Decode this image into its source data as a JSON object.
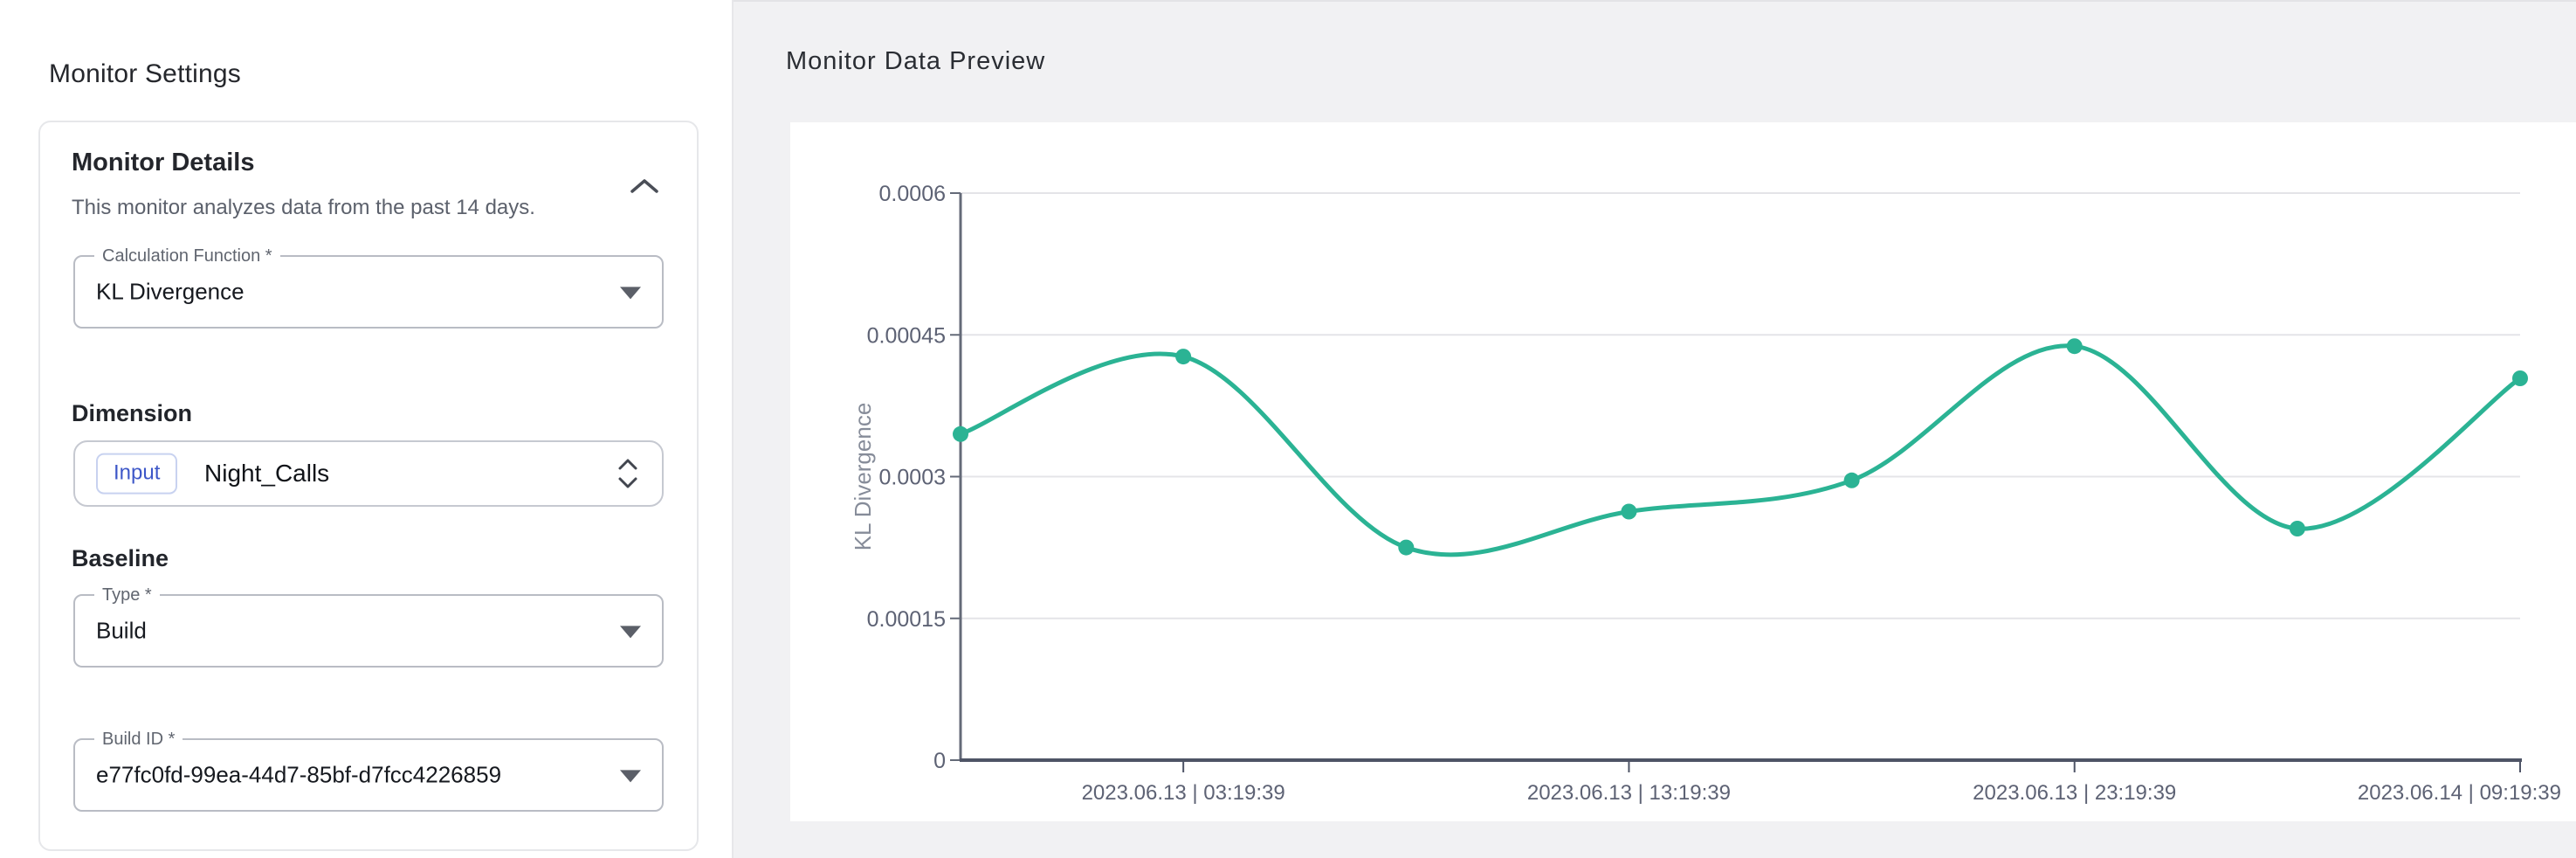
{
  "left_panel": {
    "title": "Monitor Settings",
    "card": {
      "title": "Monitor Details",
      "description": "This monitor analyzes data from the past 14 days.",
      "collapse_icon": "chevron-up",
      "calculation_function": {
        "label": "Calculation Function *",
        "value": "KL Divergence"
      },
      "dimension_heading": "Dimension",
      "dimension": {
        "chip": "Input",
        "value": "Night_Calls"
      },
      "baseline_heading": "Baseline",
      "baseline_type": {
        "label": "Type *",
        "value": "Build"
      },
      "build_id": {
        "label": "Build ID *",
        "value": "e77fc0fd-99ea-44d7-85bf-d7fcc4226859"
      }
    }
  },
  "right_panel": {
    "title": "Monitor Data Preview"
  },
  "chart_data": {
    "type": "line",
    "title": "Monitor Data Preview",
    "xlabel": "",
    "ylabel": "KL Divergence",
    "series": [
      {
        "name": "KL Divergence",
        "values": [
          0.000345,
          0.000427,
          0.000225,
          0.000263,
          0.000296,
          0.000438,
          0.000245,
          0.000404
        ]
      }
    ],
    "x_tick_labels": [
      "2023.06.13 | 03:19:39",
      "2023.06.13 | 13:19:39",
      "2023.06.13 | 23:19:39",
      "2023.06.14 | 09:19:39"
    ],
    "x_tick_point_indices": [
      1,
      3,
      5,
      7
    ],
    "ylim": [
      0,
      0.0006
    ],
    "yticks": [
      0,
      0.00015,
      0.0003,
      0.00045,
      0.0006
    ],
    "ytick_labels": [
      "0",
      "0.00015",
      "0.0003",
      "0.00045",
      "0.0006"
    ],
    "grid": true,
    "legend": "none",
    "smooth": true,
    "line_color": "#2bb394"
  },
  "colors": {
    "accent_teal": "#2bb394",
    "chip_blue": "#3d57c8",
    "page_bg": "#f1f1f3",
    "grid_line": "#e4e4e8",
    "y_axis": "#646a78",
    "x_axis": "#4e5466",
    "tick_text": "#5d6274",
    "axis_label_text": "#868c99"
  }
}
